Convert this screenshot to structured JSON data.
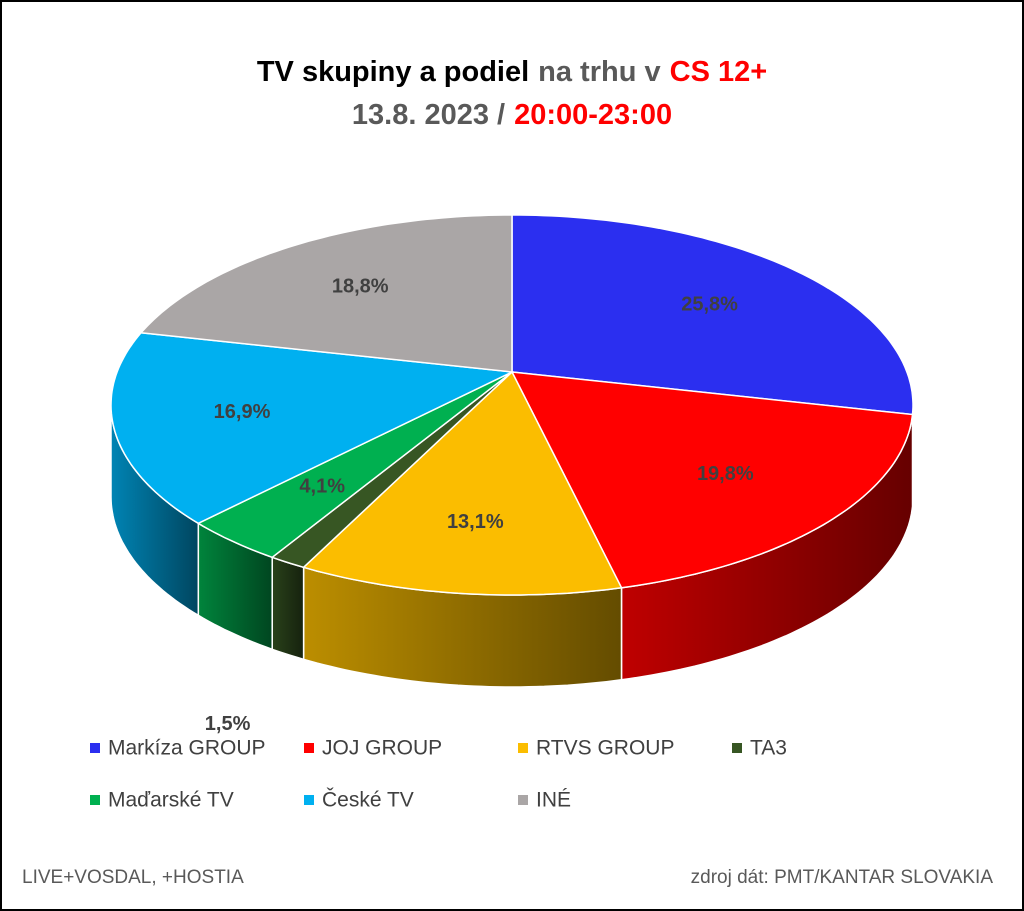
{
  "chart_data": {
    "type": "pie3d",
    "title_lines": [
      [
        {
          "text": "TV skupiny a podiel",
          "color": "#000000"
        },
        {
          "text": "na trhu v",
          "color": "#595959"
        },
        {
          "text": "CS 12+",
          "color": "#ff0000"
        }
      ],
      [
        {
          "text": "13.8. 2023 /",
          "color": "#595959"
        },
        {
          "text": "20:00-23:00",
          "color": "#ff0000"
        }
      ]
    ],
    "categories": [
      "Markíza GROUP",
      "JOJ GROUP",
      "RTVS GROUP",
      "TA3",
      "Maďarské  TV",
      "České  TV",
      "INÉ"
    ],
    "values": [
      25.8,
      19.8,
      13.1,
      1.5,
      4.1,
      16.9,
      18.8
    ],
    "value_labels": [
      "25,8%",
      "19,8%",
      "13,1%",
      "1,5%",
      "4,1%",
      "16,9%",
      "18,8%"
    ],
    "colors": [
      "#2b2ff0",
      "#ff0000",
      "#fbbd00",
      "#375623",
      "#00b050",
      "#00b0f0",
      "#aaa6a6"
    ],
    "footer_left": "LIVE+VOSDAL, +HOSTIA",
    "footer_right": "zdroj dát: PMT/KANTAR SLOVAKIA"
  }
}
